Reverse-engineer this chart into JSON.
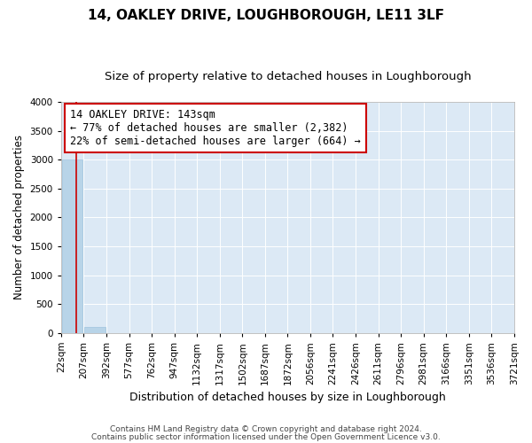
{
  "title": "14, OAKLEY DRIVE, LOUGHBOROUGH, LE11 3LF",
  "subtitle": "Size of property relative to detached houses in Loughborough",
  "xlabel": "Distribution of detached houses by size in Loughborough",
  "ylabel": "Number of detached properties",
  "footnote1": "Contains HM Land Registry data © Crown copyright and database right 2024.",
  "footnote2": "Contains public sector information licensed under the Open Government Licence v3.0.",
  "bin_edges": [
    22,
    207,
    392,
    577,
    762,
    947,
    1132,
    1317,
    1502,
    1687,
    1872,
    2056,
    2241,
    2426,
    2611,
    2796,
    2981,
    3166,
    3351,
    3536,
    3721
  ],
  "bar_heights": [
    3000,
    100,
    0,
    0,
    0,
    0,
    0,
    0,
    0,
    0,
    0,
    0,
    0,
    0,
    0,
    0,
    0,
    0,
    0,
    0
  ],
  "bar_color": "#b8d4e8",
  "bar_edgecolor": "#9ec4de",
  "property_size": 143,
  "vline_color": "#cc0000",
  "ann_line1": "14 OAKLEY DRIVE: 143sqm",
  "ann_line2": "← 77% of detached houses are smaller (2,382)",
  "ann_line3": "22% of semi-detached houses are larger (664) →",
  "annotation_box_color": "#cc0000",
  "ylim": [
    0,
    4000
  ],
  "yticks": [
    0,
    500,
    1000,
    1500,
    2000,
    2500,
    3000,
    3500,
    4000
  ],
  "bg_color": "#dce9f5",
  "grid_color": "#ffffff",
  "title_fontsize": 11,
  "subtitle_fontsize": 9.5,
  "ylabel_fontsize": 8.5,
  "xlabel_fontsize": 9,
  "tick_fontsize": 7.5,
  "footnote_fontsize": 6.5,
  "ann_fontsize": 8.5
}
